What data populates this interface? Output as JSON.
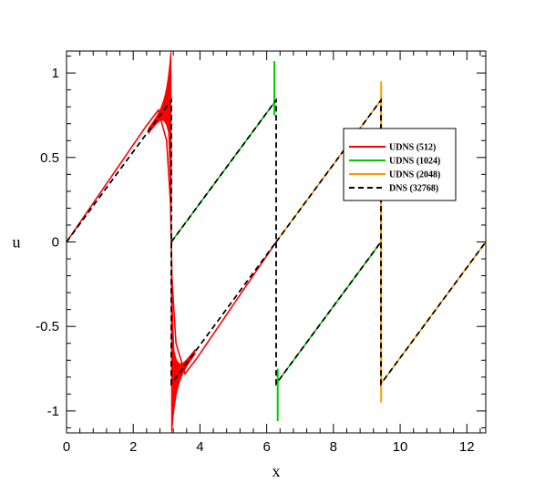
{
  "chart_data": {
    "type": "line",
    "title": "",
    "xlabel": "x",
    "ylabel": "u",
    "xlim": [
      0,
      12.566
    ],
    "ylim": [
      -1.13,
      1.13
    ],
    "xticks": [
      0,
      2,
      4,
      6,
      8,
      10,
      12
    ],
    "xtick_labels": [
      "0",
      "2",
      "4",
      "6",
      "8",
      "10",
      "12"
    ],
    "yticks": [
      -1,
      -0.5,
      0,
      0.5,
      1
    ],
    "ytick_labels": [
      "-1",
      "-0.5",
      "0",
      "0.5",
      "1"
    ],
    "grid": false,
    "legend_position": "right",
    "series": [
      {
        "name": "UDNS (512)",
        "color": "#ff0000",
        "dash": "solid",
        "segments": [
          [
            [
              0,
              0
            ],
            [
              2.4,
              0.69
            ],
            [
              2.75,
              0.78
            ],
            [
              3.0,
              0.6
            ],
            [
              3.12,
              0.22
            ],
            [
              3.14,
              0
            ],
            [
              3.16,
              -0.22
            ],
            [
              3.28,
              -0.6
            ],
            [
              3.55,
              -0.78
            ],
            [
              3.9,
              -0.69
            ],
            [
              6.283,
              0
            ]
          ]
        ],
        "oscillation_envelope": [
          {
            "x_range": [
              2.4,
              3.14
            ],
            "y_max_at_shock": 1.13
          },
          {
            "x_range": [
              3.14,
              3.9
            ],
            "y_min_at_shock": -1.13
          }
        ]
      },
      {
        "name": "UDNS (1024)",
        "color": "#00cc00",
        "dash": "solid",
        "segments": [
          [
            [
              3.1416,
              0
            ],
            [
              6.283,
              0.84
            ]
          ],
          [
            [
              6.283,
              -0.84
            ],
            [
              9.425,
              0
            ]
          ]
        ],
        "spikes": [
          {
            "x": 6.23,
            "y_top": 1.07,
            "y_bottom": 0.75
          },
          {
            "x": 6.33,
            "y_top": -0.75,
            "y_bottom": -1.06
          }
        ]
      },
      {
        "name": "UDNS (2048)",
        "color": "#ff9900",
        "dash": "solid",
        "segments": [
          [
            [
              6.283,
              0
            ],
            [
              9.425,
              0.84
            ]
          ],
          [
            [
              9.425,
              -0.84
            ],
            [
              12.566,
              0
            ]
          ]
        ],
        "spikes": [
          {
            "x": 9.43,
            "y_top": 0.95,
            "y_bottom": -0.95
          }
        ]
      },
      {
        "name": "DNS (32768)",
        "color": "#000000",
        "dash": "dashed",
        "segments": [
          [
            [
              0,
              0
            ],
            [
              3.1416,
              0.84
            ],
            [
              3.1416,
              -0.84
            ],
            [
              6.283,
              0
            ]
          ],
          [
            [
              3.1416,
              0
            ],
            [
              6.283,
              0.84
            ],
            [
              6.283,
              -0.84
            ],
            [
              9.425,
              0
            ]
          ],
          [
            [
              6.283,
              0
            ],
            [
              9.425,
              0.84
            ],
            [
              9.425,
              -0.84
            ],
            [
              12.566,
              0
            ]
          ]
        ]
      }
    ]
  }
}
